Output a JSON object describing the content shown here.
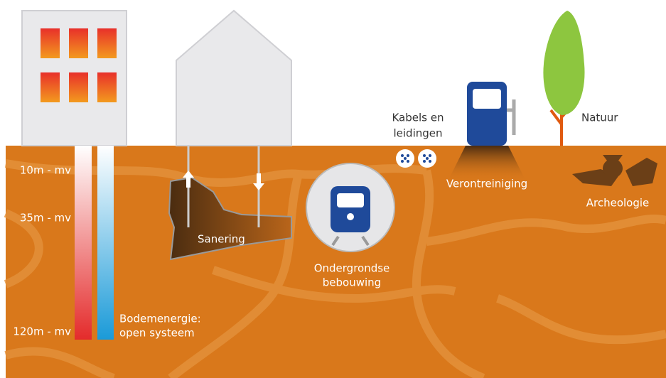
{
  "depth_labels": [
    "10m - mv",
    "35m - mv",
    "120m - mv"
  ],
  "bodemenergie": [
    "Bodemenergie:",
    "open systeem"
  ],
  "sanering": "Sanering",
  "ondergrondse_bebouwing": [
    "Ondergrondse",
    "bebouwing"
  ],
  "kabels": [
    "Kabels en",
    "leidingen"
  ],
  "verontreiniging": "Verontreiniging",
  "natuur": "Natuur",
  "archeologie": "Archeologie"
}
